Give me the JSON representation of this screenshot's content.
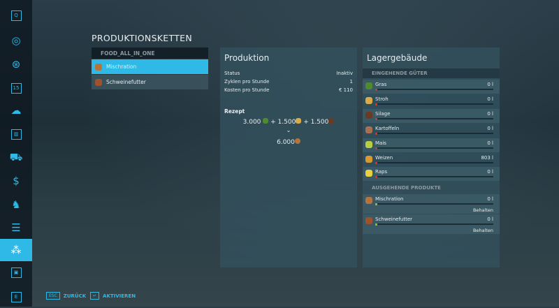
{
  "sidebar": {
    "items": [
      {
        "icon": "help-icon",
        "glyph": "Q"
      },
      {
        "icon": "map-icon",
        "glyph": "◎"
      },
      {
        "icon": "steering-wheel-icon",
        "glyph": "⊛"
      },
      {
        "icon": "calendar-icon",
        "glyph": "15"
      },
      {
        "icon": "weather-icon",
        "glyph": "☁"
      },
      {
        "icon": "statistics-icon",
        "glyph": "▥"
      },
      {
        "icon": "vehicles-icon",
        "glyph": "⛟"
      },
      {
        "icon": "finances-icon",
        "glyph": "$"
      },
      {
        "icon": "animals-icon",
        "glyph": "♞"
      },
      {
        "icon": "contracts-icon",
        "glyph": "☰"
      },
      {
        "icon": "production-icon",
        "glyph": "⁂",
        "selected": true
      },
      {
        "icon": "settings-icon",
        "glyph": "▣"
      },
      {
        "icon": "e-key-icon",
        "glyph": "E"
      }
    ]
  },
  "page": {
    "title": "PRODUKTIONSKETTEN"
  },
  "list": {
    "header": "FOOD_ALL_IN_ONE",
    "items": [
      {
        "label": "Mischration",
        "color": "#b5743e",
        "selected": true
      },
      {
        "label": "Schweinefutter",
        "color": "#a0522d"
      }
    ]
  },
  "production": {
    "title": "Produktion",
    "rows": [
      {
        "k": "Status",
        "v": "Inaktiv"
      },
      {
        "k": "Zyklen pro Stunde",
        "v": "1"
      },
      {
        "k": "Kosten pro Stunde",
        "v": "€ 110"
      }
    ],
    "recipe_label": "Rezept",
    "inputs": [
      "3.000",
      "+ 1.500",
      "+ 1.500"
    ],
    "output": "6.000"
  },
  "storage": {
    "title": "Lagergebäude",
    "incoming_label": "EINGEHENDE GÜTER",
    "incoming": [
      {
        "name": "Gras",
        "value": "0 l",
        "color": "#4f8a2e"
      },
      {
        "name": "Stroh",
        "value": "0 l",
        "color": "#d9a94a"
      },
      {
        "name": "Silage",
        "value": "0 l",
        "color": "#6b3a22"
      },
      {
        "name": "Kartoffeln",
        "value": "0 l",
        "color": "#a87050"
      },
      {
        "name": "Mais",
        "value": "0 l",
        "color": "#b8d040"
      },
      {
        "name": "Weizen",
        "value": "803 l",
        "color": "#d89a30"
      },
      {
        "name": "Raps",
        "value": "0 l",
        "color": "#e8d040"
      }
    ],
    "outgoing_label": "AUSGEHENDE PRODUKTE",
    "outgoing": [
      {
        "name": "Mischration",
        "value": "0 l",
        "mode": "Behalten",
        "color": "#b5743e"
      },
      {
        "name": "Schweinefutter",
        "value": "0 l",
        "mode": "Behalten",
        "color": "#a0522d"
      }
    ]
  },
  "footer": {
    "back_key": "ESC",
    "back": "ZURÜCK",
    "activate_key": "↵",
    "activate": "AKTIVIEREN"
  },
  "colors": {
    "accent": "#2fb9e6"
  }
}
